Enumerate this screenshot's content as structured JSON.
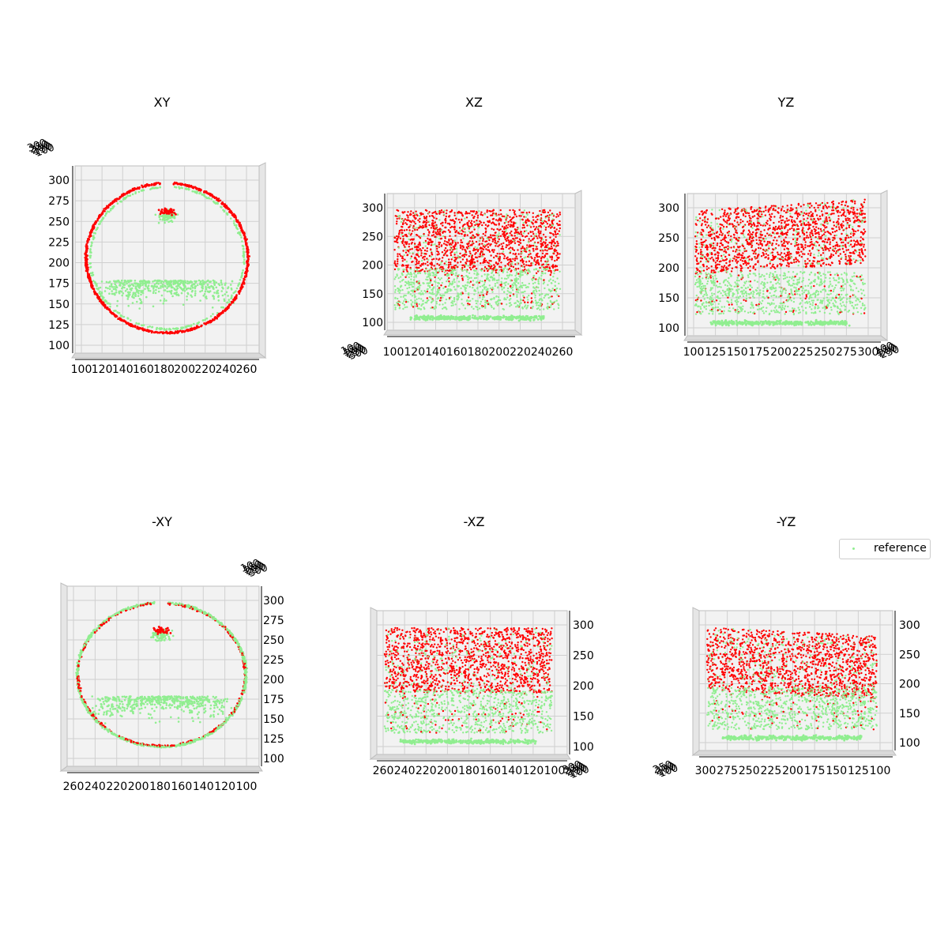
{
  "chart_data": [
    {
      "type": "scatter",
      "title": "XY",
      "series_colors": {
        "reference": "#90EE90",
        "target": "#FF0000"
      },
      "x_ticks": [
        "100",
        "120",
        "140",
        "160",
        "180",
        "200",
        "220",
        "240",
        "260"
      ],
      "y_ticks": [
        "100",
        "125",
        "150",
        "175",
        "200",
        "225",
        "250",
        "275",
        "300"
      ],
      "depth_ticks": [
        "300",
        "250",
        "200",
        "150",
        "100"
      ],
      "xlim": [
        95,
        275
      ],
      "ylim": [
        90,
        305
      ]
    },
    {
      "type": "scatter",
      "title": "XZ",
      "series_colors": {
        "reference": "#90EE90",
        "target": "#FF0000"
      },
      "x_ticks": [
        "100",
        "120",
        "140",
        "160",
        "180",
        "200",
        "220",
        "240",
        "260"
      ],
      "y_ticks": [
        "100",
        "150",
        "200",
        "250",
        "300"
      ],
      "depth_ticks": [
        "100",
        "150",
        "200",
        "250",
        "300"
      ],
      "xlim": [
        98,
        270
      ],
      "ylim": [
        85,
        315
      ]
    },
    {
      "type": "scatter",
      "title": "YZ",
      "series_colors": {
        "reference": "#90EE90",
        "target": "#FF0000"
      },
      "x_ticks": [
        "100",
        "125",
        "150",
        "175",
        "200",
        "225",
        "250",
        "275",
        "300"
      ],
      "y_ticks": [
        "100",
        "150",
        "200",
        "250",
        "300"
      ],
      "depth_ticks": [
        "100",
        "150",
        "200",
        "250"
      ],
      "xlim": [
        95,
        305
      ],
      "ylim": [
        85,
        315
      ]
    },
    {
      "type": "scatter",
      "title": "-XY",
      "series_colors": {
        "reference": "#90EE90",
        "target": "#FF0000"
      },
      "x_ticks": [
        "260",
        "240",
        "220",
        "200",
        "180",
        "160",
        "140",
        "120",
        "100"
      ],
      "y_ticks": [
        "100",
        "125",
        "150",
        "175",
        "200",
        "225",
        "250",
        "275",
        "300"
      ],
      "depth_ticks": [
        "100",
        "150",
        "200",
        "250",
        "300"
      ],
      "xlim": [
        275,
        95
      ],
      "ylim": [
        90,
        305
      ]
    },
    {
      "type": "scatter",
      "title": "-XZ",
      "series_colors": {
        "reference": "#90EE90",
        "target": "#FF0000"
      },
      "x_ticks": [
        "260",
        "240",
        "220",
        "200",
        "180",
        "160",
        "140",
        "120",
        "100"
      ],
      "y_ticks": [
        "100",
        "150",
        "200",
        "250",
        "300"
      ],
      "depth_ticks": [
        "300",
        "250",
        "200",
        "150",
        "100"
      ],
      "xlim": [
        270,
        98
      ],
      "ylim": [
        85,
        315
      ]
    },
    {
      "type": "scatter",
      "title": "-YZ",
      "series_colors": {
        "reference": "#90EE90",
        "target": "#FF0000"
      },
      "x_ticks": [
        "300",
        "275",
        "250",
        "225",
        "200",
        "175",
        "150",
        "125",
        "100"
      ],
      "y_ticks": [
        "100",
        "150",
        "200",
        "250",
        "300"
      ],
      "depth_ticks": [
        "250",
        "200",
        "150",
        "100"
      ],
      "xlim": [
        305,
        95
      ],
      "ylim": [
        85,
        315
      ]
    }
  ],
  "legend": {
    "location": "top-right",
    "entries": [
      {
        "label": "reference",
        "color": "#90EE90"
      }
    ]
  }
}
